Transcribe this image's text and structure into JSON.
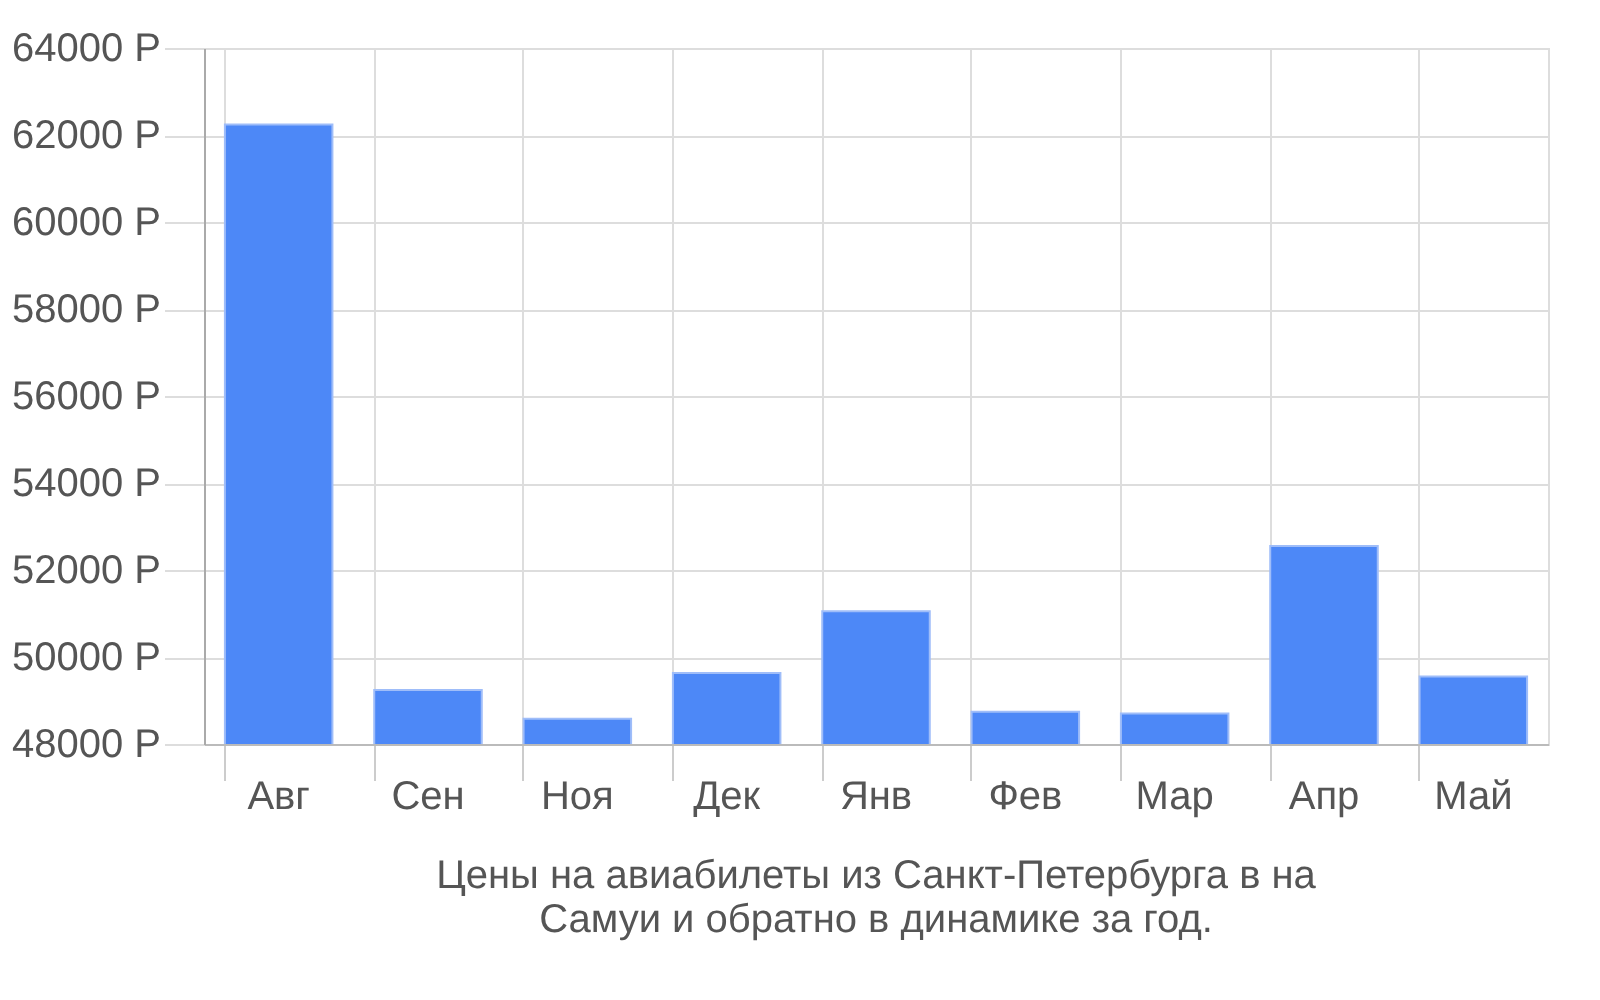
{
  "chart_data": {
    "type": "bar",
    "title": "Цены на авиабилеты из Санкт-Петербурга в на Самуи и обратно в динамике за год.",
    "categories": [
      "Авг",
      "Сен",
      "Ноя",
      "Дек",
      "Янв",
      "Фев",
      "Мар",
      "Апр",
      "Май"
    ],
    "values": [
      62240,
      49240,
      48580,
      49630,
      51050,
      48740,
      48700,
      52550,
      49550
    ],
    "color": "#4d88f7",
    "ylim": [
      48000,
      64000
    ],
    "yticks": [
      {
        "value": 48000,
        "label": "48000 Р"
      },
      {
        "value": 50000,
        "label": "50000 Р"
      },
      {
        "value": 52000,
        "label": "52000 Р"
      },
      {
        "value": 54000,
        "label": "54000 Р"
      },
      {
        "value": 56000,
        "label": "56000 Р"
      },
      {
        "value": 58000,
        "label": "58000 Р"
      },
      {
        "value": 60000,
        "label": "60000 Р"
      },
      {
        "value": 62000,
        "label": "62000 Р"
      },
      {
        "value": 64000,
        "label": "64000 Р"
      }
    ],
    "grid": true
  }
}
